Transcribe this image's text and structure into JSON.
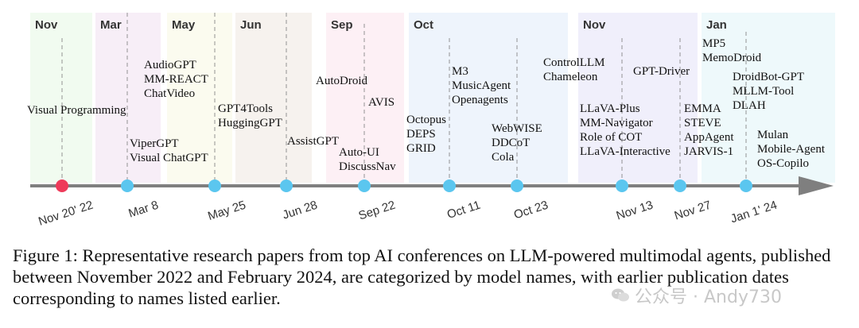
{
  "months": [
    {
      "label": "Nov",
      "color": "#f1fbf0"
    },
    {
      "label": "Mar",
      "color": "#f7eef7"
    },
    {
      "label": "May",
      "color": "#fbfbef"
    },
    {
      "label": "Jun",
      "color": "#f6f2ee"
    },
    {
      "label": "Sep",
      "color": "#fdf0f5"
    },
    {
      "label": "Oct",
      "color": "#eef4fc"
    },
    {
      "label": "Nov",
      "color": "#f0effb"
    },
    {
      "label": "Jan",
      "color": "#eef9fb"
    }
  ],
  "dates": [
    {
      "label": "Nov 20' 22",
      "color": "#ee3b5a"
    },
    {
      "label": "Mar 8",
      "color": "#5bc6ef"
    },
    {
      "label": "May 25",
      "color": "#5bc6ef"
    },
    {
      "label": "Jun 28",
      "color": "#5bc6ef"
    },
    {
      "label": "Sep 22",
      "color": "#5bc6ef"
    },
    {
      "label": "Oct 11",
      "color": "#5bc6ef"
    },
    {
      "label": "Oct 23",
      "color": "#5bc6ef"
    },
    {
      "label": "Nov 13",
      "color": "#5bc6ef"
    },
    {
      "label": "Nov 27",
      "color": "#5bc6ef"
    },
    {
      "label": "Jan 1' 24",
      "color": "#5bc6ef"
    }
  ],
  "paper_groups": [
    [
      "Visual Programming"
    ],
    [
      "AudioGPT",
      "MM-REACT",
      "ChatVideo"
    ],
    [
      "ViperGPT",
      "Visual ChatGPT"
    ],
    [
      "GPT4Tools",
      "HuggingGPT"
    ],
    [
      "AssistGPT"
    ],
    [
      "AutoDroid"
    ],
    [
      "AVIS"
    ],
    [
      "Auto-UI",
      "DiscussNav"
    ],
    [
      "M3",
      "MusicAgent",
      "Openagents"
    ],
    [
      "Octopus",
      "DEPS",
      "GRID"
    ],
    [
      "WebWISE",
      "DDCoT",
      "Cola"
    ],
    [
      "ControlLLM",
      "Chameleon"
    ],
    [
      "LLaVA-Plus",
      "MM-Navigator",
      "Role of COT",
      "LLaVA-Interactive"
    ],
    [
      "GPT-Driver"
    ],
    [
      "EMMA",
      "STEVE",
      "AppAgent",
      "JARVIS-1"
    ],
    [
      "MP5",
      "MemoDroid"
    ],
    [
      "DroidBot-GPT",
      "MLLM-Tool",
      "DLAH"
    ],
    [
      "Mulan",
      "Mobile-Agent",
      "OS-Copilo"
    ]
  ],
  "axis_color": "#7f7f7f",
  "caption": "Figure 1: Representative research papers from top AI conferences on LLM-powered multimodal agents, published between November 2022 and February 2024, are categorized by model names, with earlier publication dates corresponding to names listed earlier.",
  "watermark": "公众号 · Andy730"
}
